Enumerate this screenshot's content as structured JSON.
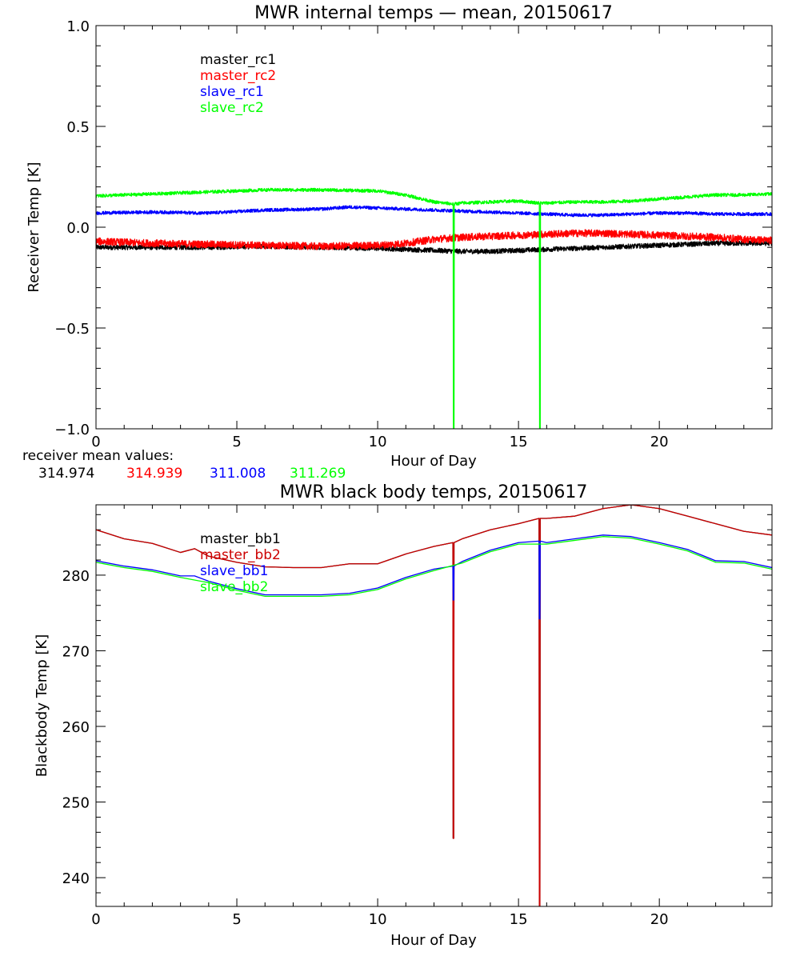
{
  "colors": {
    "background": "#ffffff",
    "axis": "#000000",
    "black": "#000000",
    "red": "#ff0000",
    "darkred": "#cc0000",
    "blue": "#0000ff",
    "green": "#00ff00"
  },
  "mean_values": {
    "label": "receiver mean values:",
    "values": [
      {
        "text": "314.974",
        "color": "#000000"
      },
      {
        "text": "314.939",
        "color": "#ff0000"
      },
      {
        "text": "311.008",
        "color": "#0000ff"
      },
      {
        "text": "311.269",
        "color": "#00ff00"
      }
    ]
  },
  "chart_data": [
    {
      "type": "line",
      "title": "MWR internal temps — mean, 20150617",
      "xlabel": "Hour of Day",
      "ylabel": "Receiver Temp [K]",
      "xlim": [
        0,
        24
      ],
      "ylim": [
        -1.0,
        1.0
      ],
      "xticks": [
        0,
        5,
        10,
        15,
        20
      ],
      "yticks": [
        -1.0,
        -0.5,
        0.0,
        0.5,
        1.0
      ],
      "ytick_labels": [
        "−1.0",
        "−0.5",
        "0.0",
        "0.5",
        "1.0"
      ],
      "grid": false,
      "legend_position": "top-left",
      "series": [
        {
          "name": "master_rc1",
          "color": "#000000",
          "noise": 0.012,
          "x": [
            0,
            2,
            4,
            6,
            8,
            10,
            11,
            12,
            13,
            14,
            15,
            16,
            17,
            18,
            19,
            20,
            21,
            22,
            23,
            24
          ],
          "y": [
            -0.1,
            -0.1,
            -0.1,
            -0.095,
            -0.1,
            -0.105,
            -0.11,
            -0.115,
            -0.12,
            -0.12,
            -0.115,
            -0.11,
            -0.105,
            -0.1,
            -0.095,
            -0.09,
            -0.085,
            -0.08,
            -0.08,
            -0.08
          ]
        },
        {
          "name": "master_rc2",
          "color": "#ff0000",
          "noise": 0.018,
          "x": [
            0,
            2,
            4,
            6,
            8,
            10,
            11,
            12,
            13,
            14,
            15,
            16,
            17,
            18,
            19,
            20,
            21,
            22,
            23,
            24
          ],
          "y": [
            -0.07,
            -0.08,
            -0.085,
            -0.09,
            -0.095,
            -0.09,
            -0.08,
            -0.06,
            -0.05,
            -0.045,
            -0.04,
            -0.035,
            -0.03,
            -0.03,
            -0.035,
            -0.04,
            -0.045,
            -0.05,
            -0.06,
            -0.065
          ]
        },
        {
          "name": "slave_rc1",
          "color": "#0000ff",
          "noise": 0.008,
          "x": [
            0,
            2,
            4,
            6,
            8,
            9,
            10,
            12,
            13,
            14,
            15,
            16,
            17,
            18,
            19,
            20,
            21,
            22,
            23,
            24
          ],
          "y": [
            0.07,
            0.075,
            0.07,
            0.085,
            0.09,
            0.1,
            0.095,
            0.085,
            0.08,
            0.075,
            0.07,
            0.065,
            0.06,
            0.06,
            0.065,
            0.07,
            0.07,
            0.065,
            0.065,
            0.065
          ]
        },
        {
          "name": "slave_rc2",
          "color": "#00ff00",
          "noise": 0.008,
          "x": [
            0,
            2,
            4,
            6,
            8,
            10,
            11,
            12,
            12.68,
            12.69,
            12.71,
            12.72,
            13,
            14,
            15,
            15.74,
            15.75,
            15.77,
            15.78,
            16,
            17,
            18,
            19,
            20,
            21,
            22,
            23,
            24
          ],
          "y": [
            0.155,
            0.165,
            0.175,
            0.185,
            0.185,
            0.18,
            0.16,
            0.125,
            0.115,
            -1.05,
            -1.05,
            0.115,
            0.12,
            0.125,
            0.13,
            0.12,
            -1.05,
            -1.05,
            0.12,
            0.12,
            0.125,
            0.125,
            0.13,
            0.14,
            0.15,
            0.16,
            0.16,
            0.165
          ]
        }
      ]
    },
    {
      "type": "line",
      "title": "MWR black body temps, 20150617",
      "xlabel": "Hour of Day",
      "ylabel": "Blackbody Temp [K]",
      "xlim": [
        0,
        24
      ],
      "ylim": [
        236.2,
        289.3
      ],
      "xticks": [
        0,
        5,
        10,
        15,
        20
      ],
      "yticks": [
        240,
        250,
        260,
        270,
        280
      ],
      "grid": false,
      "legend_position": "top-left",
      "series": [
        {
          "name": "master_bb1",
          "color": "#000000",
          "noise": 0,
          "x": [
            0,
            1,
            2,
            3,
            3.5,
            4,
            5,
            6,
            7,
            8,
            9,
            10,
            11,
            12,
            12.67,
            12.68,
            12.7,
            12.71,
            13,
            14,
            15,
            15.73,
            15.74,
            15.76,
            15.77,
            16,
            17,
            18,
            19,
            20,
            21,
            22,
            23,
            24
          ],
          "y": [
            286.0,
            284.8,
            284.2,
            283.0,
            283.5,
            282.5,
            281.7,
            281.1,
            281.0,
            281.0,
            281.5,
            281.5,
            282.8,
            283.8,
            284.3,
            245.2,
            245.2,
            284.3,
            284.8,
            286.0,
            286.8,
            287.5,
            236.2,
            236.2,
            287.5,
            287.5,
            287.8,
            288.8,
            289.3,
            288.8,
            287.8,
            286.8,
            285.8,
            285.3
          ]
        },
        {
          "name": "master_bb2",
          "color": "#cc0000",
          "noise": 0,
          "x": [
            0,
            1,
            2,
            3,
            3.5,
            4,
            5,
            6,
            7,
            8,
            9,
            10,
            11,
            12,
            12.67,
            12.68,
            12.7,
            12.71,
            13,
            14,
            15,
            15.73,
            15.74,
            15.76,
            15.77,
            16,
            17,
            18,
            19,
            20,
            21,
            22,
            23,
            24
          ],
          "y": [
            286.0,
            284.8,
            284.2,
            283.0,
            283.5,
            282.5,
            281.7,
            281.1,
            281.0,
            281.0,
            281.5,
            281.5,
            282.8,
            283.8,
            284.3,
            245.2,
            245.2,
            284.3,
            284.8,
            286.0,
            286.8,
            287.5,
            236.2,
            236.2,
            287.5,
            287.5,
            287.8,
            288.8,
            289.3,
            288.8,
            287.8,
            286.8,
            285.8,
            285.3
          ]
        },
        {
          "name": "slave_bb1",
          "color": "#0000ff",
          "noise": 0,
          "x": [
            0,
            1,
            2,
            3,
            3.5,
            4,
            5,
            6,
            7,
            8,
            9,
            10,
            11,
            12,
            12.67,
            12.68,
            12.7,
            12.71,
            13,
            14,
            15,
            15.73,
            15.74,
            15.76,
            15.77,
            16,
            17,
            18,
            19,
            20,
            21,
            22,
            23,
            24
          ],
          "y": [
            281.9,
            281.2,
            280.7,
            279.9,
            279.9,
            279.2,
            278.2,
            277.4,
            277.4,
            277.4,
            277.6,
            278.3,
            279.7,
            280.8,
            281.2,
            276.7,
            276.7,
            281.2,
            281.8,
            283.3,
            284.3,
            284.5,
            274.2,
            274.2,
            284.5,
            284.3,
            284.8,
            285.3,
            285.1,
            284.3,
            283.4,
            281.9,
            281.8,
            281.0
          ]
        },
        {
          "name": "slave_bb2",
          "color": "#00ff00",
          "noise": 0,
          "x": [
            0,
            1,
            2,
            3,
            4,
            5,
            6,
            7,
            8,
            9,
            10,
            11,
            12,
            13,
            14,
            15,
            16,
            17,
            18,
            19,
            20,
            21,
            22,
            23,
            24
          ],
          "y": [
            281.7,
            281.0,
            280.5,
            279.7,
            279.0,
            278.0,
            277.2,
            277.2,
            277.2,
            277.4,
            278.1,
            279.5,
            280.6,
            281.6,
            283.1,
            284.1,
            284.1,
            284.6,
            285.1,
            284.9,
            284.1,
            283.2,
            281.7,
            281.6,
            280.8
          ]
        }
      ]
    }
  ]
}
